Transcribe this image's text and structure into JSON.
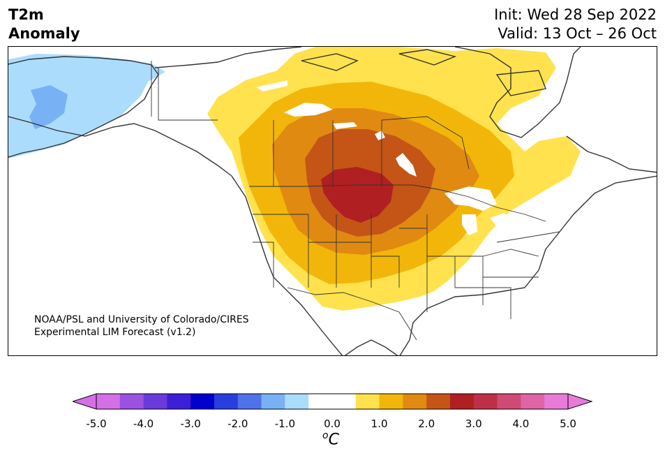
{
  "header": {
    "variable": "T2m",
    "variable_line2": "Anomaly",
    "init": "Init: Wed 28 Sep 2022",
    "valid": "Valid: 13 Oct – 26 Oct"
  },
  "credit": {
    "line1": "NOAA/PSL and University of Colorado/CIRES",
    "line2": "Experimental LIM Forecast (v1.2)"
  },
  "colorbar": {
    "units_sup": "o",
    "units": "C",
    "ticks": [
      "-5.0",
      "-4.0",
      "-3.0",
      "-2.0",
      "-1.0",
      "0.0",
      "1.0",
      "2.0",
      "3.0",
      "4.0",
      "5.0"
    ],
    "colors": [
      "#d46fe6",
      "#9b52e0",
      "#6a3adb",
      "#3d1fd6",
      "#0000cc",
      "#2a3ddd",
      "#4f72e8",
      "#78b2f5",
      "#acdcfc",
      "#ffffff",
      "#ffffff",
      "#ffe24d",
      "#f2b60a",
      "#e08a12",
      "#c45516",
      "#b01f22",
      "#be3048",
      "#cf4a75",
      "#dd65a6",
      "#e97bd8"
    ],
    "under_color": "#d46fe6",
    "over_color": "#e97bd8"
  },
  "map": {
    "land_outline_color": "#333333",
    "anomaly_colors": {
      "neg_1": "#acdcfc",
      "neg_1_5": "#78b2f5",
      "pos_0_5": "#ffe24d",
      "pos_1": "#f2b60a",
      "pos_1_5": "#e08a12",
      "pos_2": "#c45516",
      "pos_2_5": "#b01f22"
    }
  }
}
